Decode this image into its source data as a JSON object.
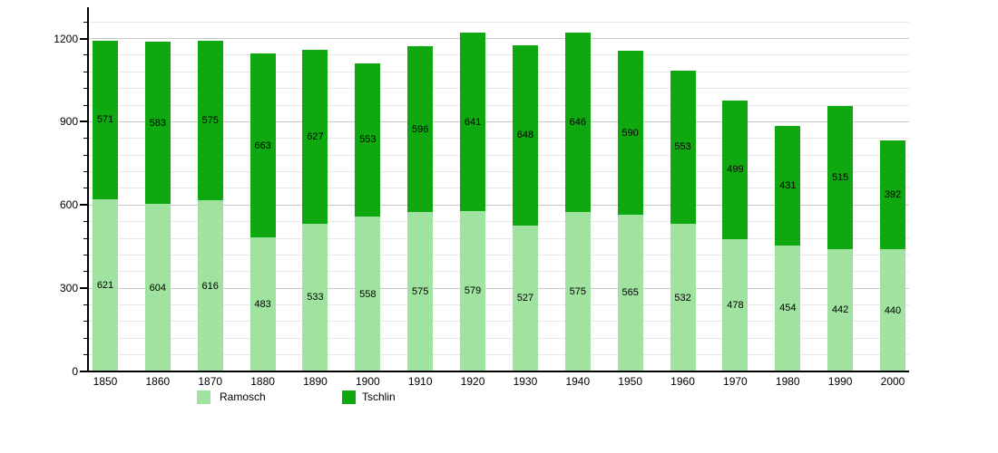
{
  "chart_data": {
    "type": "bar",
    "stacked": true,
    "title": "",
    "xlabel": "",
    "ylabel": "",
    "categories": [
      "1850",
      "1860",
      "1870",
      "1880",
      "1890",
      "1900",
      "1910",
      "1920",
      "1930",
      "1940",
      "1950",
      "1960",
      "1970",
      "1980",
      "1990",
      "2000"
    ],
    "series": [
      {
        "name": "Ramosch",
        "color": "#a0e2a0",
        "values": [
          621,
          604,
          616,
          483,
          533,
          558,
          575,
          579,
          527,
          575,
          565,
          532,
          478,
          454,
          442,
          440
        ]
      },
      {
        "name": "Tschlin",
        "color": "#10a810",
        "values": [
          571,
          583,
          575,
          663,
          627,
          553,
          596,
          641,
          648,
          646,
          590,
          553,
          499,
          431,
          515,
          392
        ]
      }
    ],
    "ylim": [
      0,
      1260
    ],
    "yticks": [
      0,
      300,
      600,
      900,
      1200
    ],
    "minor_grid_step": 60,
    "grid": true,
    "legend_position": "bottom",
    "value_labels": true
  },
  "colors": {
    "ramosch": "#a0e2a0",
    "tschlin": "#10a810",
    "axis": "#000000",
    "grid_minor": "#e7e7e7",
    "grid_major": "#c9c9c9",
    "background": "#ffffff"
  }
}
